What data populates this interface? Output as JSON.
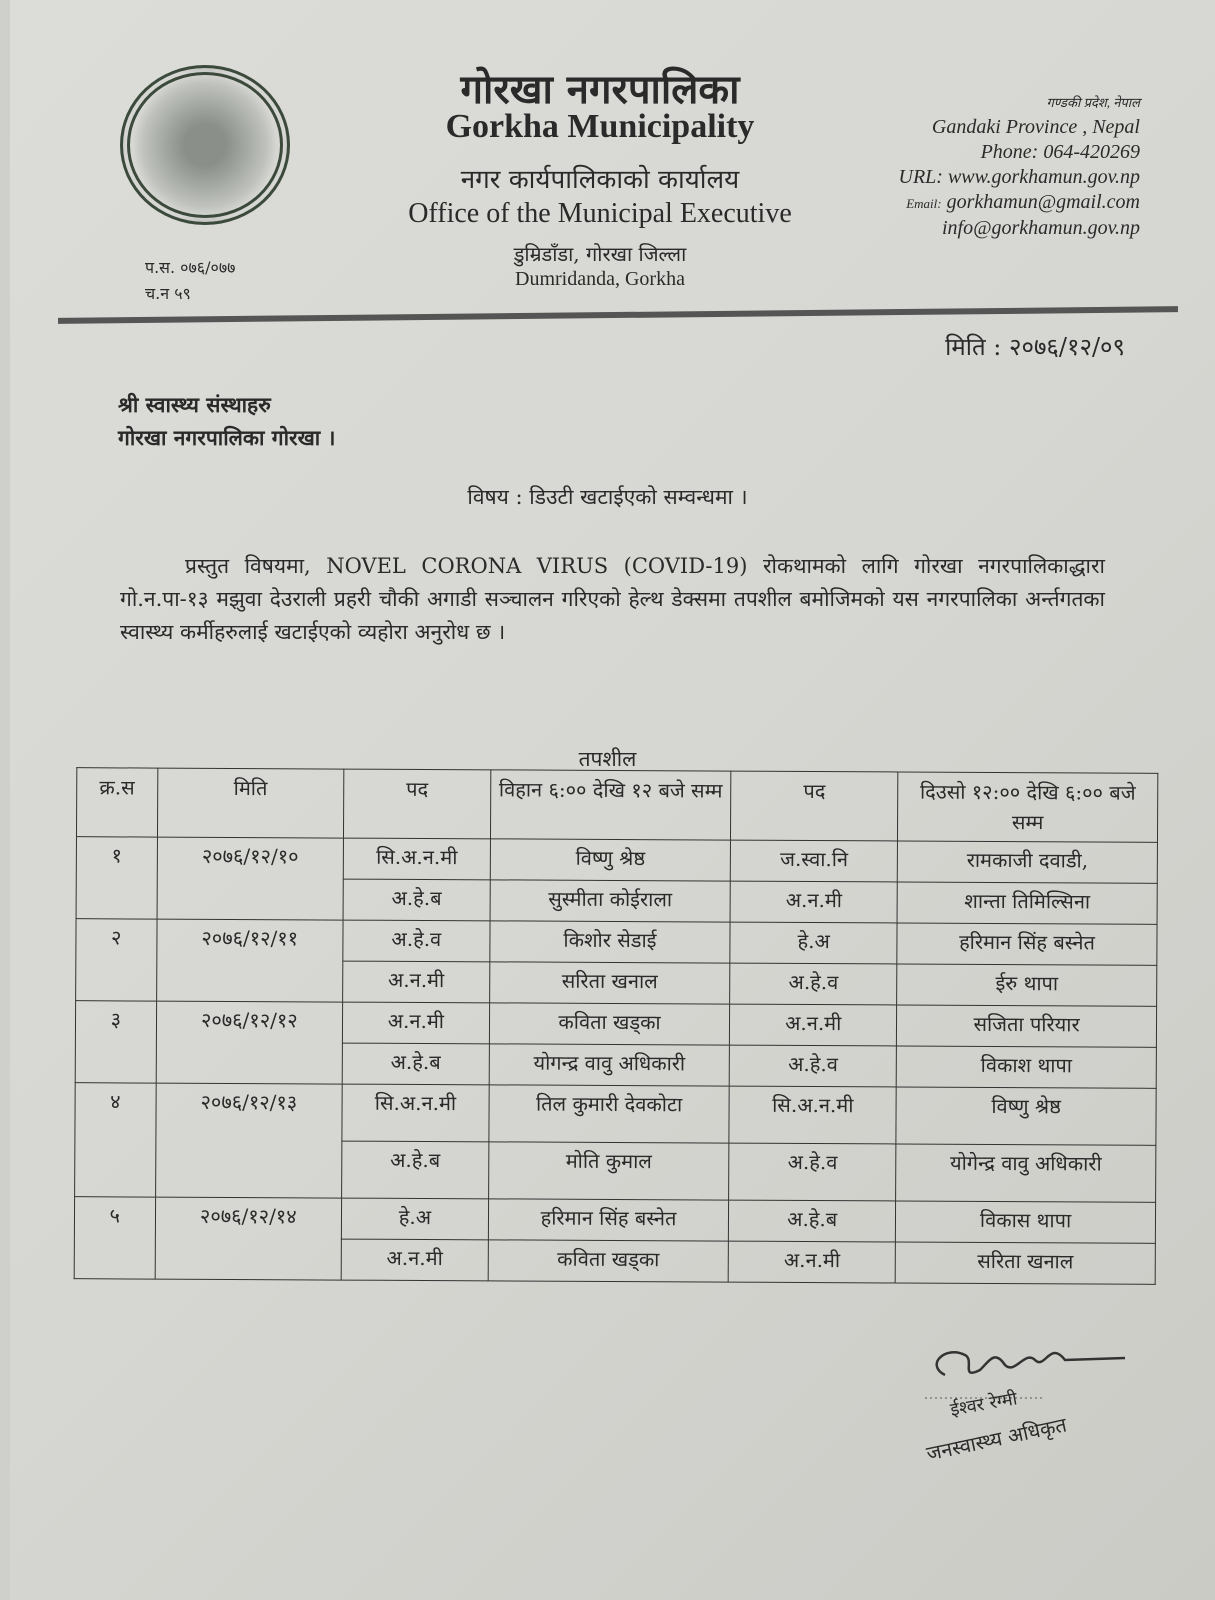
{
  "header": {
    "title_np": "गोरखा नगरपालिका",
    "title_en": "Gorkha Municipality",
    "office_np": "नगर कार्यपालिकाको कार्यालय",
    "office_en": "Office of the Municipal Executive",
    "location_np": "डुम्रिडाँडा, गोरखा जिल्ला",
    "location_en": "Dumridanda, Gorkha",
    "province_np": "गण्डकी प्रदेश, नेपाल",
    "province_en": "Gandaki Province , Nepal",
    "phone": "Phone: 064-420269",
    "url": "URL: www.gorkhamun.gov.np",
    "email_label": "Email:",
    "email": "gorkhamun@gmail.com",
    "email2": "info@gorkhamun.gov.np",
    "ref_ps": "प.स. ०७६/०७७",
    "ref_cn": "च.न ५९"
  },
  "date": "मिति : २०७६/१२/०९",
  "addressee": [
    "श्री स्वास्थ्य संस्थाहरु",
    "गोरखा नगरपालिका गोरखा ।"
  ],
  "subject": "विषय : डिउटी खटाईएको सम्वन्धमा ।",
  "body": "प्रस्तुत विषयमा, NOVEL CORONA VIRUS (COVID-19) रोकथामको लागि गोरखा नगरपालिकाद्धारा गो.न.पा-१३ मझुवा देउराली प्रहरी चौकी अगाडी सञ्चालन गरिएको हेल्थ डेक्समा तपशील बमोजिमको यस नगरपालिका अर्न्तगतका स्वास्थ्य कर्मीहरुलाई खटाईएको व्यहोरा अनुरोध छ ।",
  "table": {
    "caption": "तपशील",
    "headers": [
      "क्र.स",
      "मिति",
      "पद",
      "विहान ६:०० देखि १२ बजे सम्म",
      "पद",
      "दिउसो १२:०० देखि ६:०० बजे सम्म"
    ],
    "groups": [
      {
        "sn": "१",
        "date": "२०७६/१२/१०",
        "rows": [
          [
            "सि.अ.न.मी",
            "विष्णु श्रेष्ठ",
            "ज.स्वा.नि",
            "रामकाजी दवाडी,"
          ],
          [
            "अ.हे.ब",
            "सुस्मीता कोईराला",
            "अ.न.मी",
            "शान्ता तिमिल्सिना"
          ]
        ]
      },
      {
        "sn": "२",
        "date": "२०७६/१२/११",
        "rows": [
          [
            "अ.हे.व",
            "किशोर सेडाई",
            "हे.अ",
            "हरिमान सिंह बस्नेत"
          ],
          [
            "अ.न.मी",
            "सरिता खनाल",
            "अ.हे.व",
            "ईरु थापा"
          ]
        ]
      },
      {
        "sn": "३",
        "date": "२०७६/१२/१२",
        "rows": [
          [
            "अ.न.मी",
            "कविता खड्का",
            "अ.न.मी",
            "सजिता परियार"
          ],
          [
            "अ.हे.ब",
            "योगन्द्र वावु अधिकारी",
            "अ.हे.व",
            "विकाश थापा"
          ]
        ]
      },
      {
        "sn": "४",
        "date": "२०७६/१२/१३",
        "rows": [
          [
            "सि.अ.न.मी",
            "तिल कुमारी देवकोटा",
            "सि.अ.न.मी",
            "विष्णु श्रेष्ठ"
          ],
          [
            "अ.हे.ब",
            "मोति कुमाल",
            "अ.हे.व",
            "योगेन्द्र वावु अधिकारी"
          ]
        ]
      },
      {
        "sn": "५",
        "date": "२०७६/१२/१४",
        "rows": [
          [
            "हे.अ",
            "हरिमान सिंह बस्नेत",
            "अ.हे.ब",
            "विकास थापा"
          ],
          [
            "अ.न.मी",
            "कविता खड्का",
            "अ.न.मी",
            "सरिता खनाल"
          ]
        ]
      }
    ]
  },
  "signature": {
    "name": "ईश्वर रेग्मी",
    "title": "जनस्वास्थ्य अधिकृत"
  }
}
